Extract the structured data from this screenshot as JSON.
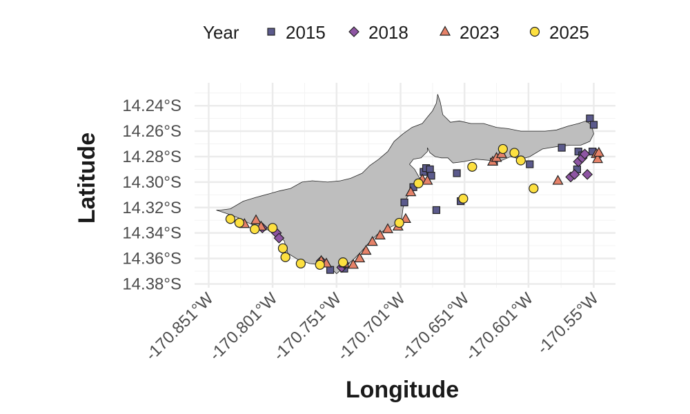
{
  "chart_data": {
    "type": "scatter",
    "title": "",
    "xlabel": "Longitude",
    "ylabel": "Latitude",
    "legend_title": "Year",
    "legend_position": "top",
    "grid": true,
    "xlim": [
      -170.862,
      -170.533
    ],
    "ylim": [
      -14.383,
      -14.222
    ],
    "x_ticks": [
      {
        "value": -170.851,
        "label": "-170.851°W"
      },
      {
        "value": -170.801,
        "label": "-170.801°W"
      },
      {
        "value": -170.751,
        "label": "-170.751°W"
      },
      {
        "value": -170.701,
        "label": "-170.701°W"
      },
      {
        "value": -170.651,
        "label": "-170.651°W"
      },
      {
        "value": -170.601,
        "label": "-170.601°W"
      },
      {
        "value": -170.55,
        "label": "-170.55°W"
      }
    ],
    "y_ticks": [
      {
        "value": -14.24,
        "label": "14.24°S"
      },
      {
        "value": -14.26,
        "label": "14.26°S"
      },
      {
        "value": -14.28,
        "label": "14.28°S"
      },
      {
        "value": -14.3,
        "label": "14.30°S"
      },
      {
        "value": -14.32,
        "label": "14.32°S"
      },
      {
        "value": -14.34,
        "label": "14.34°S"
      },
      {
        "value": -14.36,
        "label": "14.36°S"
      },
      {
        "value": -14.38,
        "label": "14.38°S"
      }
    ],
    "island_color": "#bebebe",
    "series": [
      {
        "name": "2015",
        "shape": "square",
        "color": "#5b5a8c",
        "points": [
          [
            -170.756,
            -14.369
          ],
          [
            -170.745,
            -14.368
          ],
          [
            -170.698,
            -14.316
          ],
          [
            -170.691,
            -14.304
          ],
          [
            -170.683,
            -14.292
          ],
          [
            -170.681,
            -14.289
          ],
          [
            -170.678,
            -14.29
          ],
          [
            -170.677,
            -14.295
          ],
          [
            -170.673,
            -14.322
          ],
          [
            -170.657,
            -14.293
          ],
          [
            -170.654,
            -14.315
          ],
          [
            -170.628,
            -14.284
          ],
          [
            -170.6,
            -14.286
          ],
          [
            -170.575,
            -14.273
          ],
          [
            -170.563,
            -14.29
          ],
          [
            -170.562,
            -14.276
          ],
          [
            -170.559,
            -14.279
          ],
          [
            -170.553,
            -14.25
          ],
          [
            -170.55,
            -14.255
          ],
          [
            -170.551,
            -14.276
          ]
        ]
      },
      {
        "name": "2018",
        "shape": "diamond",
        "color": "#8e55a3",
        "points": [
          [
            -170.809,
            -14.336
          ],
          [
            -170.798,
            -14.34
          ],
          [
            -170.796,
            -14.344
          ],
          [
            -170.763,
            -14.362
          ],
          [
            -170.747,
            -14.367
          ],
          [
            -170.745,
            -14.364
          ],
          [
            -170.568,
            -14.296
          ],
          [
            -170.565,
            -14.294
          ],
          [
            -170.562,
            -14.284
          ],
          [
            -170.559,
            -14.281
          ],
          [
            -170.557,
            -14.278
          ],
          [
            -170.555,
            -14.294
          ]
        ]
      },
      {
        "name": "2023",
        "shape": "triangle",
        "color": "#e68269",
        "points": [
          [
            -170.823,
            -14.333
          ],
          [
            -170.814,
            -14.33
          ],
          [
            -170.81,
            -14.335
          ],
          [
            -170.763,
            -14.362
          ],
          [
            -170.759,
            -14.364
          ],
          [
            -170.745,
            -14.364
          ],
          [
            -170.738,
            -14.365
          ],
          [
            -170.733,
            -14.36
          ],
          [
            -170.728,
            -14.354
          ],
          [
            -170.723,
            -14.347
          ],
          [
            -170.717,
            -14.342
          ],
          [
            -170.711,
            -14.337
          ],
          [
            -170.703,
            -14.335
          ],
          [
            -170.697,
            -14.329
          ],
          [
            -170.693,
            -14.308
          ],
          [
            -170.684,
            -14.298
          ],
          [
            -170.68,
            -14.299
          ],
          [
            -170.629,
            -14.284
          ],
          [
            -170.626,
            -14.281
          ],
          [
            -170.622,
            -14.278
          ],
          [
            -170.578,
            -14.299
          ],
          [
            -170.548,
            -14.278
          ],
          [
            -170.547,
            -14.282
          ],
          [
            -170.546,
            -14.277
          ]
        ]
      },
      {
        "name": "2025",
        "shape": "circle",
        "color": "#fde040",
        "points": [
          [
            -170.834,
            -14.329
          ],
          [
            -170.827,
            -14.332
          ],
          [
            -170.815,
            -14.337
          ],
          [
            -170.801,
            -14.336
          ],
          [
            -170.793,
            -14.352
          ],
          [
            -170.791,
            -14.359
          ],
          [
            -170.779,
            -14.364
          ],
          [
            -170.764,
            -14.365
          ],
          [
            -170.746,
            -14.363
          ],
          [
            -170.702,
            -14.332
          ],
          [
            -170.687,
            -14.301
          ],
          [
            -170.652,
            -14.313
          ],
          [
            -170.645,
            -14.288
          ],
          [
            -170.621,
            -14.274
          ],
          [
            -170.612,
            -14.277
          ],
          [
            -170.607,
            -14.283
          ],
          [
            -170.597,
            -14.305
          ]
        ]
      }
    ]
  }
}
